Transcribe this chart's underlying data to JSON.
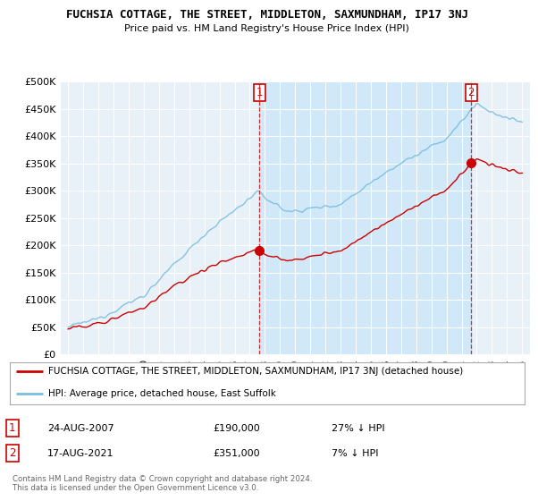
{
  "title": "FUCHSIA COTTAGE, THE STREET, MIDDLETON, SAXMUNDHAM, IP17 3NJ",
  "subtitle": "Price paid vs. HM Land Registry's House Price Index (HPI)",
  "ylabel_ticks": [
    "£0",
    "£50K",
    "£100K",
    "£150K",
    "£200K",
    "£250K",
    "£300K",
    "£350K",
    "£400K",
    "£450K",
    "£500K"
  ],
  "ytick_values": [
    0,
    50000,
    100000,
    150000,
    200000,
    250000,
    300000,
    350000,
    400000,
    450000,
    500000
  ],
  "xlim_start": 1994.5,
  "xlim_end": 2025.5,
  "ylim": [
    0,
    500000
  ],
  "sale1_date": 2007.65,
  "sale1_price": 190000,
  "sale2_date": 2021.63,
  "sale2_price": 351000,
  "legend_line1": "FUCHSIA COTTAGE, THE STREET, MIDDLETON, SAXMUNDHAM, IP17 3NJ (detached house)",
  "legend_line2": "HPI: Average price, detached house, East Suffolk",
  "table_row1": [
    "1",
    "24-AUG-2007",
    "£190,000",
    "27% ↓ HPI"
  ],
  "table_row2": [
    "2",
    "17-AUG-2021",
    "£351,000",
    "7% ↓ HPI"
  ],
  "footer": "Contains HM Land Registry data © Crown copyright and database right 2024.\nThis data is licensed under the Open Government Licence v3.0.",
  "hpi_color": "#7bbde0",
  "sale_color": "#cc0000",
  "bg_color": "#ffffff",
  "plot_bg_color": "#e8f0f8",
  "grid_color": "#ffffff",
  "shade_color": "#d0e8f8",
  "xticks": [
    1995,
    1996,
    1997,
    1998,
    1999,
    2000,
    2001,
    2002,
    2003,
    2004,
    2005,
    2006,
    2007,
    2008,
    2009,
    2010,
    2011,
    2012,
    2013,
    2014,
    2015,
    2016,
    2017,
    2018,
    2019,
    2020,
    2021,
    2022,
    2023,
    2024,
    2025
  ]
}
